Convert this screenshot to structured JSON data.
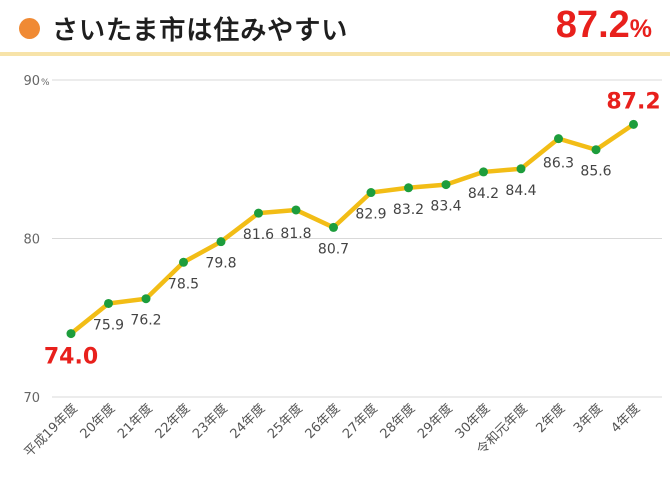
{
  "header": {
    "title": "さいたま市は住みやすい",
    "headline_value": "87.2",
    "headline_unit": "%"
  },
  "colors": {
    "line": "#f2bd16",
    "marker": "#1d9d3c",
    "highlight": "#e8201c",
    "accent_dot": "#f08a34",
    "grid": "#d9d9d9"
  },
  "chart_data": {
    "type": "line",
    "title": "さいたま市は住みやすい",
    "xlabel": "",
    "ylabel": "",
    "ylim": [
      70,
      90
    ],
    "y_ticks": [
      70,
      80,
      90
    ],
    "y_unit": "%",
    "grid": true,
    "categories": [
      "平成19年度",
      "20年度",
      "21年度",
      "22年度",
      "23年度",
      "24年度",
      "25年度",
      "26年度",
      "27年度",
      "28年度",
      "29年度",
      "30年度",
      "令和元年度",
      "2年度",
      "3年度",
      "4年度"
    ],
    "series": [
      {
        "name": "住みやすい",
        "values": [
          74.0,
          75.9,
          76.2,
          78.5,
          79.8,
          81.6,
          81.8,
          80.7,
          82.9,
          83.2,
          83.4,
          84.2,
          84.4,
          86.3,
          85.6,
          87.2
        ],
        "labels": [
          "74.0",
          "75.9",
          "76.2",
          "78.5",
          "79.8",
          "81.6",
          "81.8",
          "80.7",
          "82.9",
          "83.2",
          "83.4",
          "84.2",
          "84.4",
          "86.3",
          "85.6",
          "87.2"
        ]
      }
    ]
  }
}
